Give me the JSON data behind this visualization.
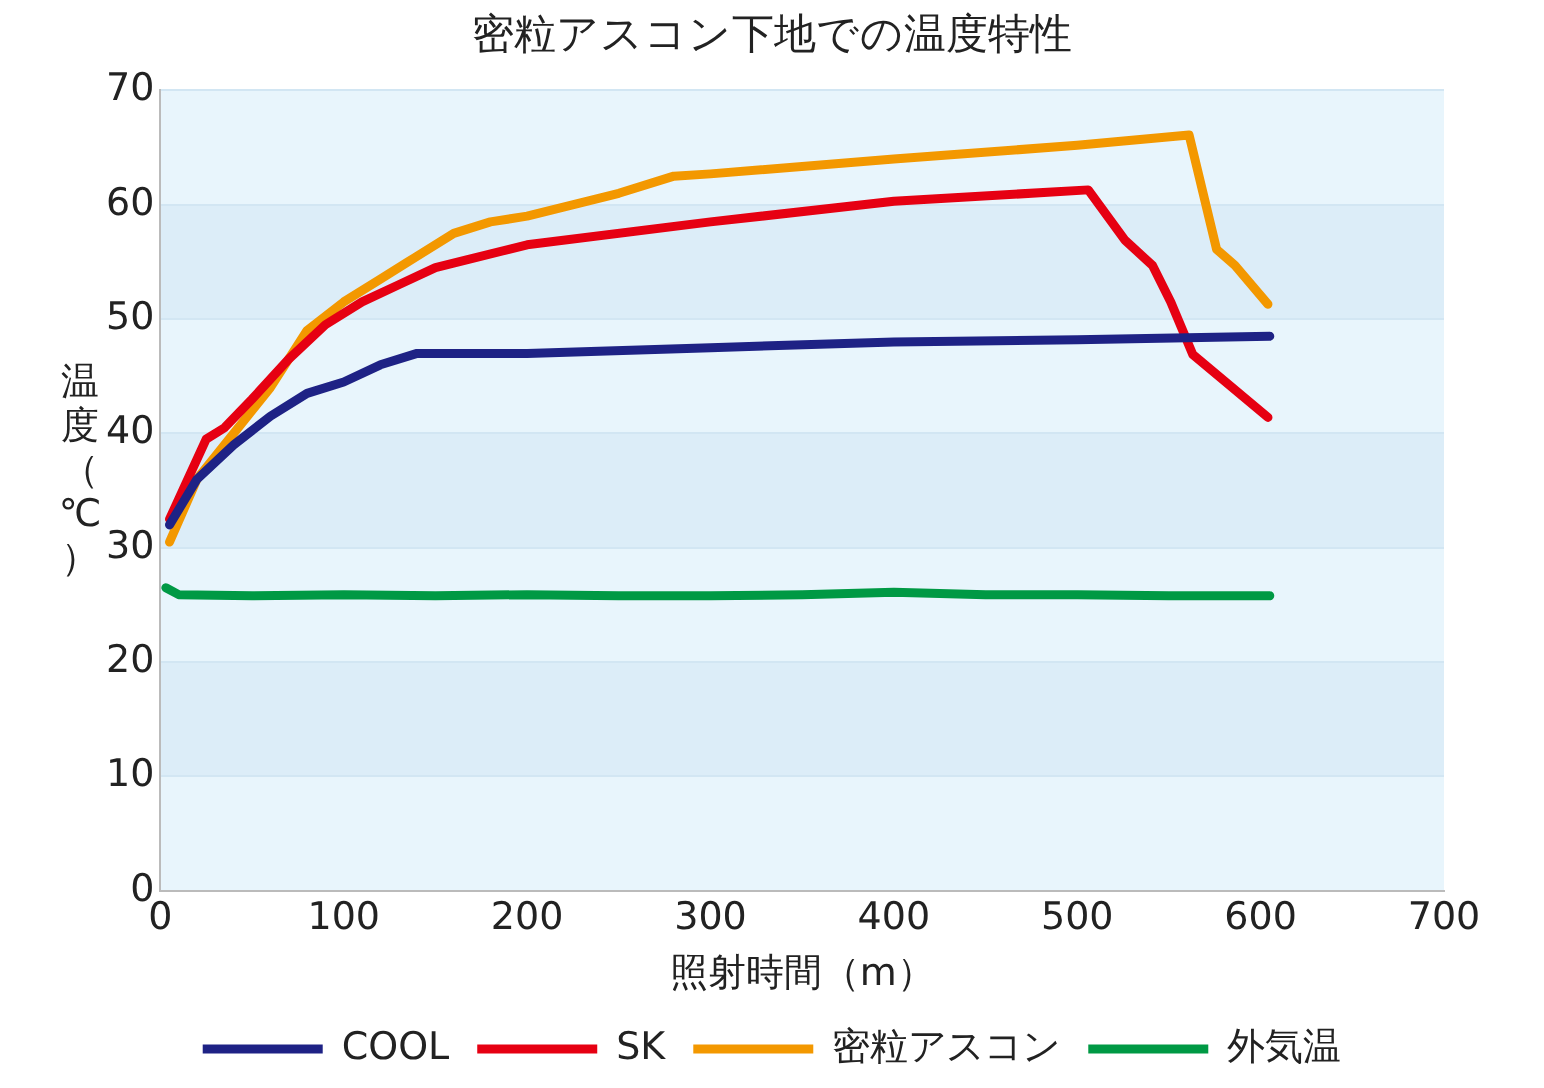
{
  "chart_data": {
    "type": "line",
    "title": "密粒アスコン下地での温度特性",
    "xlabel": "照射時間（m）",
    "ylabel": "温度（℃）",
    "xlim": [
      0,
      700
    ],
    "xticks": [
      0,
      100,
      200,
      300,
      400,
      500,
      600,
      700
    ],
    "ylim": [
      0,
      70
    ],
    "yticks": [
      0,
      10,
      20,
      30,
      40,
      50,
      60,
      70
    ],
    "grid": "y",
    "legend": "bottom",
    "marker": "none",
    "line_style": "solid",
    "series": [
      {
        "name": "COOL",
        "color": "#1e2285",
        "x": [
          5,
          20,
          40,
          60,
          80,
          100,
          120,
          140,
          200,
          300,
          400,
          500,
          605
        ],
        "values": [
          32,
          36,
          39,
          41.5,
          43.5,
          44.5,
          46,
          47,
          47,
          47.5,
          48,
          48.2,
          48.5
        ]
      },
      {
        "name": "SK",
        "color": "#e60012",
        "x": [
          5,
          15,
          25,
          35,
          50,
          70,
          90,
          110,
          130,
          150,
          200,
          300,
          400,
          506,
          526,
          541,
          551,
          563,
          604
        ],
        "values": [
          32.5,
          36,
          39.5,
          40.5,
          43,
          46.5,
          49.5,
          51.5,
          53,
          54.5,
          56.5,
          58.5,
          60.3,
          61.3,
          56.9,
          54.7,
          51.5,
          46.9,
          41.4
        ]
      },
      {
        "name": "密粒アスコン",
        "color": "#f39800",
        "x": [
          5,
          20,
          40,
          60,
          80,
          100,
          120,
          135,
          160,
          180,
          200,
          250,
          280,
          300,
          400,
          500,
          561,
          576,
          586,
          604
        ],
        "values": [
          30.5,
          36,
          40,
          44,
          49,
          51.5,
          53.5,
          55,
          57.5,
          58.5,
          59,
          61,
          62.5,
          62.7,
          64,
          65.2,
          66.1,
          56.1,
          54.7,
          51.3
        ]
      },
      {
        "name": "外気温",
        "color": "#009944",
        "x": [
          3,
          10,
          50,
          100,
          150,
          200,
          250,
          300,
          350,
          400,
          450,
          500,
          550,
          605
        ],
        "values": [
          26.5,
          25.9,
          25.8,
          25.9,
          25.8,
          25.9,
          25.8,
          25.8,
          25.9,
          26.1,
          25.9,
          25.9,
          25.8,
          25.8
        ]
      }
    ]
  }
}
